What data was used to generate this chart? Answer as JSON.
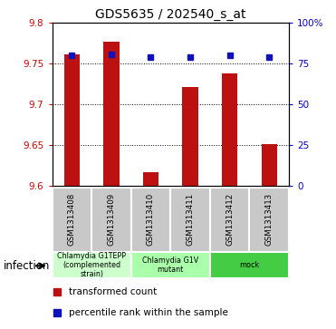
{
  "title": "GDS5635 / 202540_s_at",
  "samples": [
    "GSM1313408",
    "GSM1313409",
    "GSM1313410",
    "GSM1313411",
    "GSM1313412",
    "GSM1313413"
  ],
  "bar_values": [
    9.762,
    9.777,
    9.617,
    9.721,
    9.738,
    9.651
  ],
  "blue_dot_pct": [
    80,
    81,
    79,
    79,
    80,
    79
  ],
  "ymin": 9.6,
  "ymax": 9.8,
  "yticks": [
    9.6,
    9.65,
    9.7,
    9.75,
    9.8
  ],
  "ytick_labels": [
    "9.6",
    "9.65",
    "9.7",
    "9.75",
    "9.8"
  ],
  "right_yticks": [
    0,
    25,
    50,
    75,
    100
  ],
  "right_ytick_labels": [
    "0",
    "25",
    "50",
    "75",
    "100%"
  ],
  "bar_color": "#bb1111",
  "dot_color": "#1111bb",
  "bar_base": 9.6,
  "groups": [
    {
      "label": "Chlamydia G1TEPP\n(complemented\nstrain)",
      "start": 0,
      "end": 1,
      "color": "#ccffcc"
    },
    {
      "label": "Chlamydia G1V\nmutant",
      "start": 2,
      "end": 3,
      "color": "#aaffaa"
    },
    {
      "label": "mock",
      "start": 4,
      "end": 5,
      "color": "#44cc44"
    }
  ],
  "factor_label": "infection",
  "legend_bar_label": "transformed count",
  "legend_dot_label": "percentile rank within the sample",
  "title_fontsize": 10,
  "axis_label_color_left": "#cc0000",
  "axis_label_color_right": "#0000cc",
  "sample_box_color": "#c8c8c8",
  "bar_width": 0.4
}
